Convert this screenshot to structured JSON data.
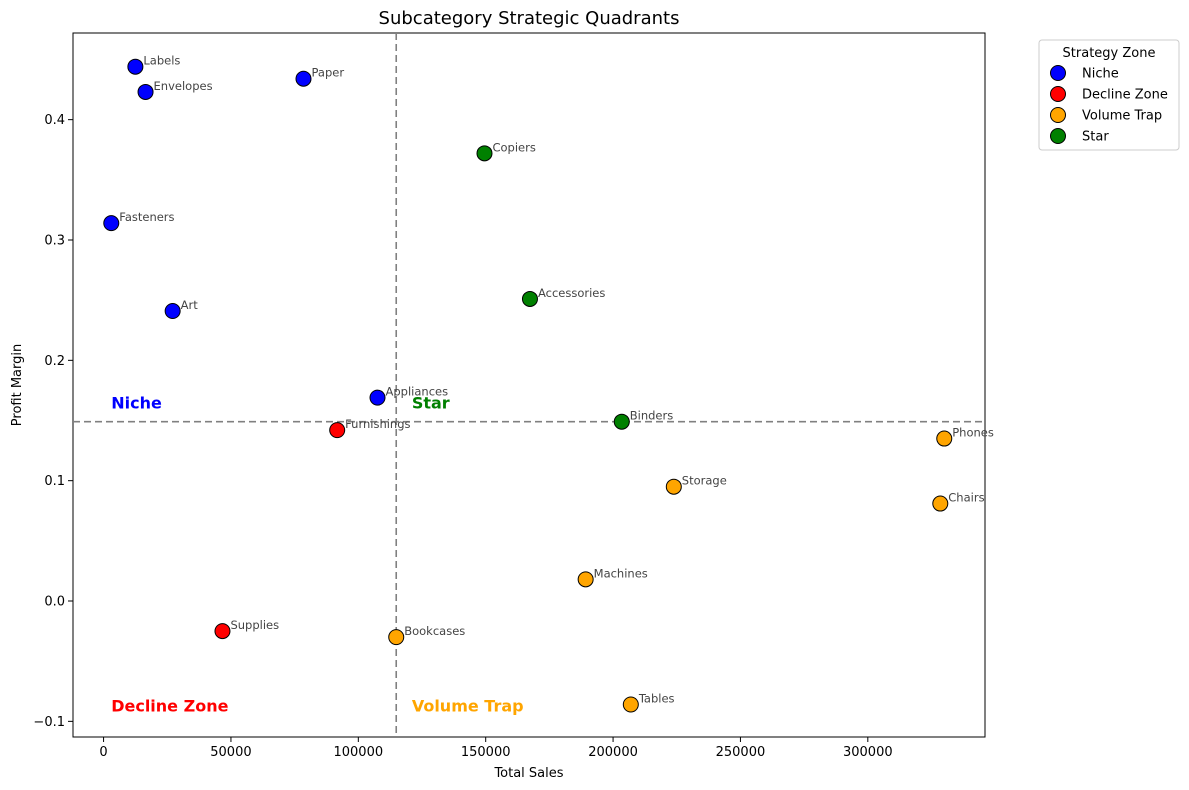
{
  "chart_data": {
    "type": "scatter",
    "title": "Subcategory Strategic Quadrants",
    "xlabel": "Total Sales",
    "ylabel": "Profit Margin",
    "xlim": [
      -12000,
      346000
    ],
    "ylim": [
      -0.113,
      0.472
    ],
    "x_ticks": [
      0,
      50000,
      100000,
      150000,
      200000,
      250000,
      300000
    ],
    "y_ticks": [
      -0.1,
      0.0,
      0.1,
      0.2,
      0.3,
      0.4
    ],
    "y_tick_labels": [
      "−0.1",
      "0.0",
      "0.1",
      "0.2",
      "0.3",
      "0.4"
    ],
    "threshold_x": 114880,
    "threshold_y": 0.149,
    "legend_title": "Strategy Zone",
    "legend_position": "outside top-right",
    "series": [
      {
        "name": "Niche",
        "color": "#0000ff",
        "points": [
          {
            "label": "Labels",
            "x": 12486,
            "y": 0.444
          },
          {
            "label": "Envelopes",
            "x": 16476,
            "y": 0.423
          },
          {
            "label": "Paper",
            "x": 78479,
            "y": 0.434
          },
          {
            "label": "Fasteners",
            "x": 3024,
            "y": 0.314
          },
          {
            "label": "Art",
            "x": 27119,
            "y": 0.241
          },
          {
            "label": "Appliances",
            "x": 107532,
            "y": 0.169
          }
        ]
      },
      {
        "name": "Decline Zone",
        "color": "#ff0000",
        "points": [
          {
            "label": "Furnishings",
            "x": 91705,
            "y": 0.142
          },
          {
            "label": "Supplies",
            "x": 46674,
            "y": -0.025
          }
        ]
      },
      {
        "name": "Volume Trap",
        "color": "#ffa500",
        "points": [
          {
            "label": "Phones",
            "x": 330007,
            "y": 0.135
          },
          {
            "label": "Chairs",
            "x": 328449,
            "y": 0.081
          },
          {
            "label": "Storage",
            "x": 223844,
            "y": 0.095
          },
          {
            "label": "Machines",
            "x": 189239,
            "y": 0.018
          },
          {
            "label": "Bookcases",
            "x": 114880,
            "y": -0.03
          },
          {
            "label": "Tables",
            "x": 206966,
            "y": -0.086
          }
        ]
      },
      {
        "name": "Star",
        "color": "#008000",
        "points": [
          {
            "label": "Copiers",
            "x": 149528,
            "y": 0.372
          },
          {
            "label": "Accessories",
            "x": 167380,
            "y": 0.251
          },
          {
            "label": "Binders",
            "x": 203413,
            "y": 0.149
          }
        ]
      }
    ],
    "quadrant_labels": [
      {
        "text": "Niche",
        "color": "#0000ff",
        "x": 3000,
        "y": 0.16
      },
      {
        "text": "Star",
        "color": "#008000",
        "x": 121000,
        "y": 0.16
      },
      {
        "text": "Decline Zone",
        "color": "#ff0000",
        "x": 3000,
        "y": -0.092
      },
      {
        "text": "Volume Trap",
        "color": "#ffa500",
        "x": 121000,
        "y": -0.092
      }
    ]
  }
}
